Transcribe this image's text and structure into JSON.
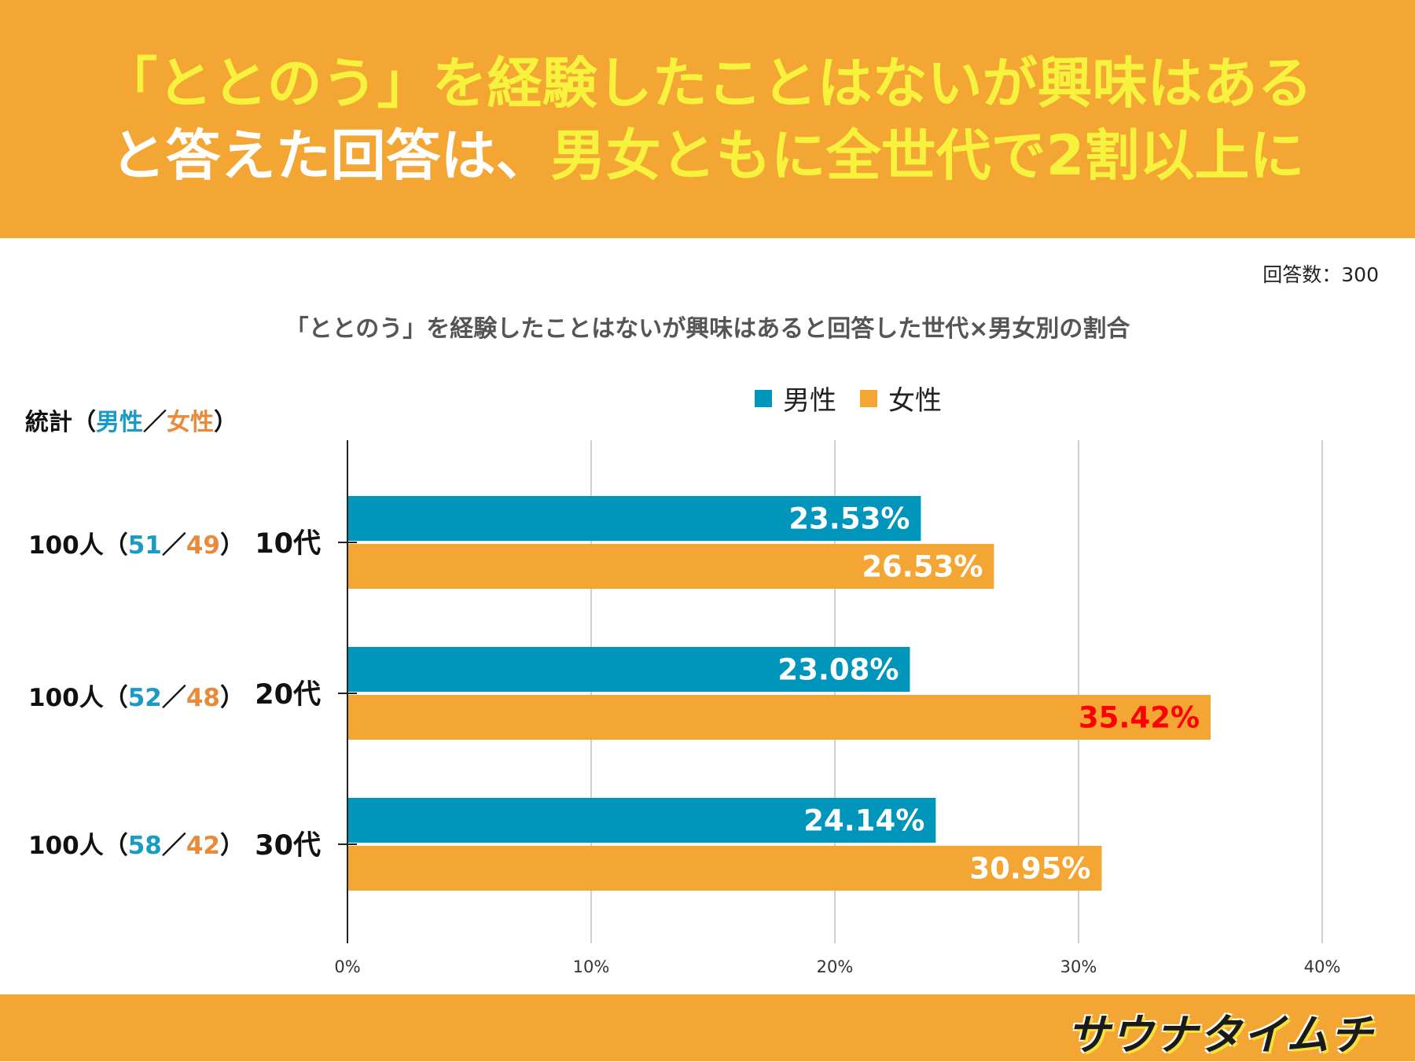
{
  "headline": {
    "line1": "「ととのう」を経験したことはないが興味はある",
    "line2_white": "と答えた回答は、",
    "line2_yellow": "男女ともに全世代で2割以上に"
  },
  "respondents": "回答数：300",
  "colors": {
    "banner": "#f3a633",
    "headline_yellow": "#f6f23e",
    "male": "#0096bc",
    "female": "#f3a633",
    "highlight": "#ff0000",
    "male_text": "#1a9bc3",
    "female_text": "#e98a3a"
  },
  "stats_header": {
    "prefix": "統計（",
    "male": "男性",
    "sep": "／",
    "female": "女性",
    "suffix": "）"
  },
  "stats_rows": [
    {
      "total": "100人（",
      "male": "51",
      "sep": "／",
      "female": "49",
      "close": "）"
    },
    {
      "total": "100人（",
      "male": "52",
      "sep": "／",
      "female": "48",
      "close": "）"
    },
    {
      "total": "100人（",
      "male": "58",
      "sep": "／",
      "female": "42",
      "close": "）"
    }
  ],
  "chart_data": {
    "type": "bar",
    "orientation": "horizontal",
    "title": "「ととのう」を経験したことはないが興味はあると回答した世代×男女別の割合",
    "categories": [
      "10代",
      "20代",
      "30代"
    ],
    "series": [
      {
        "name": "男性",
        "values": [
          23.53,
          23.08,
          24.14
        ],
        "labels": [
          "23.53%",
          "23.08%",
          "24.14%"
        ]
      },
      {
        "name": "女性",
        "values": [
          26.53,
          35.42,
          30.95
        ],
        "labels": [
          "26.53%",
          "35.42%",
          "30.95%"
        ]
      }
    ],
    "highlight": {
      "series": 1,
      "index": 1
    },
    "xlim": [
      0,
      40
    ],
    "xticks": [
      0,
      10,
      20,
      30,
      40
    ],
    "xtick_labels": [
      "0%",
      "10%",
      "20%",
      "30%",
      "40%"
    ],
    "legend": "top-center",
    "grid": true
  },
  "logo": "サウナタイムチ"
}
